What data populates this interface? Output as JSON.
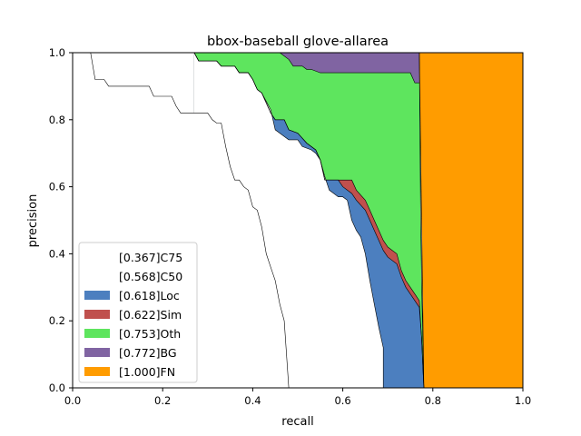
{
  "chart_data": {
    "type": "area",
    "title": "bbox-baseball glove-allarea",
    "xlabel": "recall",
    "ylabel": "precision",
    "xlim": [
      0,
      1
    ],
    "ylim": [
      0,
      1
    ],
    "xticks": [
      "0.0",
      "0.2",
      "0.4",
      "0.6",
      "0.8",
      "1.0"
    ],
    "yticks": [
      "0.0",
      "0.2",
      "0.4",
      "0.6",
      "0.8",
      "1.0"
    ],
    "legend_position": "lower-left",
    "grid": false,
    "series": [
      {
        "name": "[0.367]C75",
        "color": "#ffffff",
        "points": [
          [
            0.04,
            1.0
          ],
          [
            0.05,
            0.92
          ],
          [
            0.07,
            0.92
          ],
          [
            0.08,
            0.9
          ],
          [
            0.17,
            0.9
          ],
          [
            0.18,
            0.87
          ],
          [
            0.22,
            0.87
          ],
          [
            0.23,
            0.84
          ],
          [
            0.24,
            0.82
          ],
          [
            0.3,
            0.82
          ],
          [
            0.31,
            0.8
          ],
          [
            0.32,
            0.79
          ],
          [
            0.33,
            0.79
          ],
          [
            0.34,
            0.72
          ],
          [
            0.35,
            0.66
          ],
          [
            0.36,
            0.62
          ],
          [
            0.37,
            0.62
          ],
          [
            0.38,
            0.6
          ],
          [
            0.39,
            0.59
          ],
          [
            0.4,
            0.54
          ],
          [
            0.41,
            0.53
          ],
          [
            0.42,
            0.48
          ],
          [
            0.43,
            0.4
          ],
          [
            0.44,
            0.36
          ],
          [
            0.45,
            0.32
          ],
          [
            0.46,
            0.25
          ],
          [
            0.47,
            0.2
          ],
          [
            0.475,
            0.1
          ],
          [
            0.48,
            0.0
          ]
        ]
      },
      {
        "name": "[0.568]C50",
        "color": "#ffffff",
        "points": [
          [
            0.27,
            1.0
          ],
          [
            0.28,
            0.975
          ],
          [
            0.32,
            0.975
          ],
          [
            0.33,
            0.96
          ],
          [
            0.36,
            0.96
          ],
          [
            0.37,
            0.94
          ],
          [
            0.39,
            0.94
          ],
          [
            0.4,
            0.92
          ],
          [
            0.41,
            0.89
          ],
          [
            0.42,
            0.88
          ],
          [
            0.44,
            0.83
          ],
          [
            0.45,
            0.77
          ],
          [
            0.46,
            0.76
          ],
          [
            0.47,
            0.75
          ],
          [
            0.48,
            0.74
          ],
          [
            0.5,
            0.74
          ],
          [
            0.51,
            0.72
          ],
          [
            0.53,
            0.71
          ],
          [
            0.54,
            0.7
          ],
          [
            0.55,
            0.68
          ],
          [
            0.56,
            0.63
          ],
          [
            0.57,
            0.59
          ],
          [
            0.58,
            0.58
          ],
          [
            0.59,
            0.57
          ],
          [
            0.6,
            0.57
          ],
          [
            0.61,
            0.56
          ],
          [
            0.62,
            0.5
          ],
          [
            0.63,
            0.47
          ],
          [
            0.64,
            0.45
          ],
          [
            0.65,
            0.4
          ],
          [
            0.66,
            0.32
          ],
          [
            0.67,
            0.25
          ],
          [
            0.68,
            0.18
          ],
          [
            0.69,
            0.12
          ],
          [
            0.69,
            0.0
          ]
        ]
      },
      {
        "name": "[0.618]Loc",
        "color": "#4c7fbf",
        "points": [
          [
            0.27,
            1.0
          ],
          [
            0.28,
            0.975
          ],
          [
            0.32,
            0.975
          ],
          [
            0.33,
            0.96
          ],
          [
            0.36,
            0.96
          ],
          [
            0.37,
            0.94
          ],
          [
            0.39,
            0.94
          ],
          [
            0.4,
            0.92
          ],
          [
            0.41,
            0.89
          ],
          [
            0.42,
            0.88
          ],
          [
            0.44,
            0.82
          ],
          [
            0.45,
            0.8
          ],
          [
            0.47,
            0.8
          ],
          [
            0.48,
            0.77
          ],
          [
            0.5,
            0.76
          ],
          [
            0.52,
            0.73
          ],
          [
            0.54,
            0.71
          ],
          [
            0.55,
            0.68
          ],
          [
            0.56,
            0.62
          ],
          [
            0.59,
            0.62
          ],
          [
            0.6,
            0.6
          ],
          [
            0.62,
            0.58
          ],
          [
            0.63,
            0.56
          ],
          [
            0.65,
            0.53
          ],
          [
            0.66,
            0.5
          ],
          [
            0.67,
            0.47
          ],
          [
            0.69,
            0.41
          ],
          [
            0.7,
            0.39
          ],
          [
            0.72,
            0.37
          ],
          [
            0.73,
            0.33
          ],
          [
            0.74,
            0.3
          ],
          [
            0.75,
            0.28
          ],
          [
            0.76,
            0.26
          ],
          [
            0.77,
            0.24
          ],
          [
            0.775,
            0.15
          ],
          [
            0.78,
            0.0
          ]
        ]
      },
      {
        "name": "[0.622]Sim",
        "color": "#c0504d",
        "points": [
          [
            0.27,
            1.0
          ],
          [
            0.28,
            0.975
          ],
          [
            0.32,
            0.975
          ],
          [
            0.33,
            0.96
          ],
          [
            0.36,
            0.96
          ],
          [
            0.37,
            0.94
          ],
          [
            0.39,
            0.94
          ],
          [
            0.4,
            0.92
          ],
          [
            0.41,
            0.89
          ],
          [
            0.42,
            0.88
          ],
          [
            0.44,
            0.82
          ],
          [
            0.45,
            0.8
          ],
          [
            0.47,
            0.8
          ],
          [
            0.48,
            0.77
          ],
          [
            0.5,
            0.76
          ],
          [
            0.52,
            0.73
          ],
          [
            0.54,
            0.71
          ],
          [
            0.55,
            0.68
          ],
          [
            0.56,
            0.62
          ],
          [
            0.62,
            0.62
          ],
          [
            0.63,
            0.59
          ],
          [
            0.65,
            0.56
          ],
          [
            0.66,
            0.53
          ],
          [
            0.67,
            0.5
          ],
          [
            0.69,
            0.44
          ],
          [
            0.7,
            0.42
          ],
          [
            0.72,
            0.4
          ],
          [
            0.73,
            0.35
          ],
          [
            0.74,
            0.32
          ],
          [
            0.75,
            0.3
          ],
          [
            0.76,
            0.28
          ],
          [
            0.77,
            0.26
          ],
          [
            0.775,
            0.15
          ],
          [
            0.78,
            0.0
          ]
        ]
      },
      {
        "name": "[0.753]Oth",
        "color": "#5ee55e",
        "points": [
          [
            0.27,
            1.0
          ],
          [
            0.77,
            1.0
          ],
          [
            0.773,
            0.5
          ],
          [
            0.776,
            0.25
          ],
          [
            0.78,
            0.0
          ]
        ]
      },
      {
        "name": "[0.772]BG",
        "color": "#8064a2",
        "points": [
          [
            0.27,
            1.0
          ],
          [
            0.77,
            1.0
          ],
          [
            0.773,
            0.5
          ],
          [
            0.776,
            0.25
          ],
          [
            0.78,
            0.0
          ]
        ]
      },
      {
        "name": "[1.000]FN",
        "color": "#ff9c00",
        "points": [
          [
            0.0,
            1.0
          ],
          [
            1.0,
            1.0
          ],
          [
            1.0,
            0.0
          ]
        ]
      }
    ],
    "boundaries": {
      "oth_top": [
        [
          0.27,
          1.0
        ],
        [
          0.77,
          1.0
        ],
        [
          0.773,
          0.5
        ],
        [
          0.776,
          0.25
        ],
        [
          0.78,
          0.0
        ]
      ],
      "bg_lower": [
        [
          0.46,
          1.0
        ],
        [
          0.48,
          0.98
        ],
        [
          0.49,
          0.96
        ],
        [
          0.51,
          0.96
        ],
        [
          0.52,
          0.95
        ],
        [
          0.53,
          0.95
        ],
        [
          0.55,
          0.94
        ],
        [
          0.75,
          0.94
        ],
        [
          0.76,
          0.91
        ],
        [
          0.77,
          0.91
        ]
      ],
      "fn_left": [
        [
          0.77,
          1.0
        ],
        [
          0.78,
          0.0
        ]
      ]
    }
  }
}
